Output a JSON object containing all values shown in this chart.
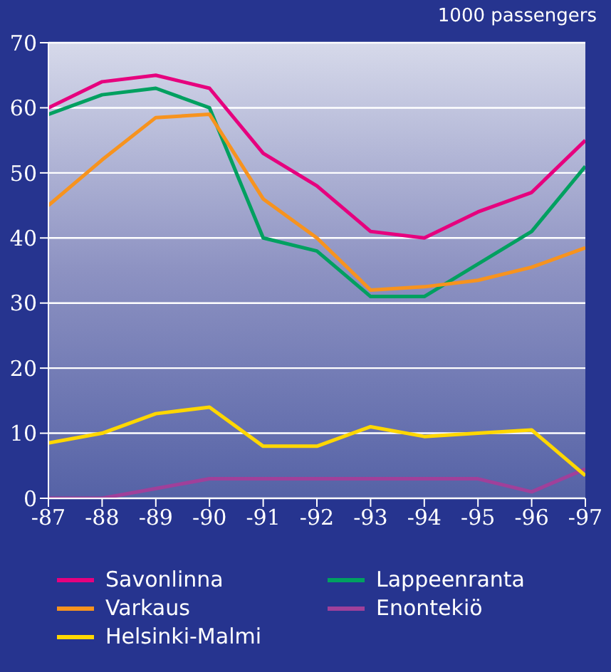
{
  "chart_data": {
    "type": "line",
    "annotations": [
      "1000 passengers"
    ],
    "categories": [
      "-87",
      "-88",
      "-89",
      "-90",
      "-91",
      "-92",
      "-93",
      "-94",
      "-95",
      "-96",
      "-97"
    ],
    "series": [
      {
        "name": "Savonlinna",
        "color": "#e6007e",
        "values": [
          60,
          64,
          65,
          63,
          53,
          48,
          41,
          40,
          44,
          47,
          55
        ]
      },
      {
        "name": "Lappeenranta",
        "color": "#00a060",
        "values": [
          59,
          62,
          63,
          60,
          40,
          38,
          31,
          31,
          36,
          41,
          51
        ]
      },
      {
        "name": "Varkaus",
        "color": "#f7931e",
        "values": [
          45,
          52,
          58.5,
          59,
          46,
          40,
          32,
          32.5,
          33.5,
          35.5,
          38.5
        ]
      },
      {
        "name": "Enontekiö",
        "color": "#a0409a",
        "values": [
          0,
          0,
          1.5,
          3,
          3,
          3,
          3,
          3,
          3,
          1,
          4.5
        ]
      },
      {
        "name": "Helsinki-Malmi",
        "color": "#ffd700",
        "values": [
          8.5,
          10,
          13,
          14,
          8,
          8,
          11,
          9.5,
          10,
          10.5,
          3.5
        ]
      }
    ],
    "ylim": [
      0,
      70
    ],
    "yticks": [
      0,
      10,
      20,
      30,
      40,
      50,
      60,
      70
    ],
    "grid": "y",
    "legend": "bottom",
    "marker": "none",
    "line_style": "solid"
  }
}
